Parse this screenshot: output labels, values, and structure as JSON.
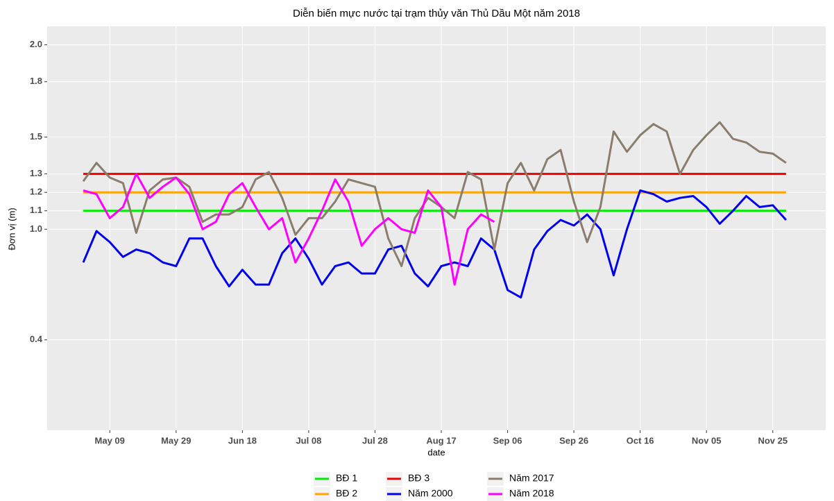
{
  "chart_data": {
    "type": "line",
    "title": "Diễn biến mực nước tại trạm thủy văn Thủ Dầu Một năm 2018",
    "xlabel": "date",
    "ylabel": "Đơn vị (m)",
    "categories": [
      "May 01",
      "May 05",
      "May 09",
      "May 13",
      "May 17",
      "May 21",
      "May 25",
      "May 29",
      "Jun 02",
      "Jun 06",
      "Jun 10",
      "Jun 14",
      "Jun 18",
      "Jun 22",
      "Jun 26",
      "Jun 30",
      "Jul 04",
      "Jul 08",
      "Jul 12",
      "Jul 16",
      "Jul 20",
      "Jul 24",
      "Jul 28",
      "Aug 01",
      "Aug 05",
      "Aug 09",
      "Aug 13",
      "Aug 17",
      "Aug 21",
      "Aug 25",
      "Aug 29",
      "Sep 02",
      "Sep 06",
      "Sep 10",
      "Sep 14",
      "Sep 18",
      "Sep 22",
      "Sep 26",
      "Sep 30",
      "Oct 04",
      "Oct 08",
      "Oct 12",
      "Oct 16",
      "Oct 20",
      "Oct 24",
      "Oct 28",
      "Nov 01",
      "Nov 05",
      "Nov 09",
      "Nov 13",
      "Nov 17",
      "Nov 21",
      "Nov 25",
      "Nov 29"
    ],
    "xticks": [
      "May 09",
      "May 29",
      "Jun 18",
      "Jul 08",
      "Jul 28",
      "Aug 17",
      "Sep 06",
      "Sep 26",
      "Oct 16",
      "Nov 05",
      "Nov 25"
    ],
    "ylim": [
      -0.09,
      2.1
    ],
    "yticks": [
      0.4,
      {
        "value": 1,
        "label": "1.0"
      },
      1.1,
      1.2,
      1.3,
      1.5,
      1.8,
      {
        "value": 2,
        "label": "2.0"
      }
    ],
    "grid": true,
    "legend": "bottom",
    "series": [
      {
        "name": "BĐ 1",
        "color": "#00ee00",
        "values": [
          1.1,
          1.1,
          1.1,
          1.1,
          1.1,
          1.1,
          1.1,
          1.1,
          1.1,
          1.1,
          1.1,
          1.1,
          1.1,
          1.1,
          1.1,
          1.1,
          1.1,
          1.1,
          1.1,
          1.1,
          1.1,
          1.1,
          1.1,
          1.1,
          1.1,
          1.1,
          1.1,
          1.1,
          1.1,
          1.1,
          1.1,
          1.1,
          1.1,
          1.1,
          1.1,
          1.1,
          1.1,
          1.1,
          1.1,
          1.1,
          1.1,
          1.1,
          1.1,
          1.1,
          1.1,
          1.1,
          1.1,
          1.1,
          1.1,
          1.1,
          1.1,
          1.1,
          1.1,
          1.1
        ]
      },
      {
        "name": "BĐ 2",
        "color": "#ffa500",
        "values": [
          1.2,
          1.2,
          1.2,
          1.2,
          1.2,
          1.2,
          1.2,
          1.2,
          1.2,
          1.2,
          1.2,
          1.2,
          1.2,
          1.2,
          1.2,
          1.2,
          1.2,
          1.2,
          1.2,
          1.2,
          1.2,
          1.2,
          1.2,
          1.2,
          1.2,
          1.2,
          1.2,
          1.2,
          1.2,
          1.2,
          1.2,
          1.2,
          1.2,
          1.2,
          1.2,
          1.2,
          1.2,
          1.2,
          1.2,
          1.2,
          1.2,
          1.2,
          1.2,
          1.2,
          1.2,
          1.2,
          1.2,
          1.2,
          1.2,
          1.2,
          1.2,
          1.2,
          1.2,
          1.2
        ]
      },
      {
        "name": "BĐ 3",
        "color": "#ee0000",
        "values": [
          1.3,
          1.3,
          1.3,
          1.3,
          1.3,
          1.3,
          1.3,
          1.3,
          1.3,
          1.3,
          1.3,
          1.3,
          1.3,
          1.3,
          1.3,
          1.3,
          1.3,
          1.3,
          1.3,
          1.3,
          1.3,
          1.3,
          1.3,
          1.3,
          1.3,
          1.3,
          1.3,
          1.3,
          1.3,
          1.3,
          1.3,
          1.3,
          1.3,
          1.3,
          1.3,
          1.3,
          1.3,
          1.3,
          1.3,
          1.3,
          1.3,
          1.3,
          1.3,
          1.3,
          1.3,
          1.3,
          1.3,
          1.3,
          1.3,
          1.3,
          1.3,
          1.3,
          1.3,
          1.3
        ]
      },
      {
        "name": "Năm 2000",
        "color": "#0000ee",
        "values": [
          0.82,
          0.99,
          0.93,
          0.85,
          0.89,
          0.87,
          0.82,
          0.8,
          0.95,
          0.95,
          0.8,
          0.69,
          0.78,
          0.7,
          0.7,
          0.87,
          0.95,
          0.84,
          0.7,
          0.8,
          0.82,
          0.76,
          0.76,
          0.89,
          0.91,
          0.76,
          0.69,
          0.8,
          0.82,
          0.8,
          0.95,
          0.89,
          0.67,
          0.63,
          0.89,
          0.99,
          1.05,
          1.02,
          1.08,
          1.0,
          0.75,
          1.0,
          1.21,
          1.19,
          1.15,
          1.17,
          1.18,
          1.12,
          1.03,
          1.1,
          1.18,
          1.12,
          1.13,
          1.05
        ]
      },
      {
        "name": "Năm 2017",
        "color": "#8b7d6b",
        "values": [
          1.26,
          1.36,
          1.28,
          1.25,
          0.98,
          1.21,
          1.27,
          1.28,
          1.23,
          1.04,
          1.08,
          1.08,
          1.12,
          1.27,
          1.31,
          1.17,
          0.97,
          1.06,
          1.06,
          1.15,
          1.27,
          1.25,
          1.23,
          0.95,
          0.8,
          1.06,
          1.17,
          1.12,
          1.06,
          1.31,
          1.27,
          0.89,
          1.25,
          1.36,
          1.21,
          1.38,
          1.43,
          1.15,
          0.93,
          1.12,
          1.53,
          1.42,
          1.51,
          1.57,
          1.53,
          1.3,
          1.43,
          1.51,
          1.58,
          1.49,
          1.47,
          1.42,
          1.41,
          1.36
        ]
      },
      {
        "name": "Năm 2018",
        "color": "#ff00ff",
        "values": [
          1.21,
          1.19,
          1.06,
          1.12,
          1.3,
          1.17,
          1.23,
          1.28,
          1.19,
          1.0,
          1.04,
          1.19,
          1.25,
          1.12,
          1.0,
          1.06,
          0.82,
          0.95,
          1.1,
          1.27,
          1.15,
          0.91,
          1.0,
          1.06,
          1.0,
          0.98,
          1.21,
          1.12,
          0.7,
          1.0,
          1.08,
          1.04,
          null,
          null,
          null,
          null,
          null,
          null,
          null,
          null,
          null,
          null,
          null,
          null,
          null,
          null,
          null,
          null,
          null,
          null,
          null,
          null,
          null,
          null
        ]
      }
    ]
  }
}
